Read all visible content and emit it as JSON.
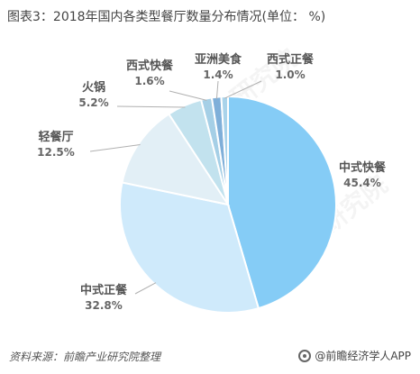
{
  "title": "图表3：2018年国内各类型餐厅数量分布情况(单位：  %)",
  "footer": {
    "source": "资料来源：前瞻产业研究院整理",
    "brand": "@前瞻经济学人APP"
  },
  "watermark_text": "前瞻产业研究院",
  "chart_data": {
    "type": "pie",
    "title": "图表3：2018年国内各类型餐厅数量分布情况(单位：  %)",
    "slices": [
      {
        "name": "中式快餐",
        "value": 45.4,
        "label": "45.4%",
        "color": "#85CCF6"
      },
      {
        "name": "中式正餐",
        "value": 32.8,
        "label": "32.8%",
        "color": "#CFEAFB"
      },
      {
        "name": "轻餐厅",
        "value": 12.5,
        "label": "12.5%",
        "color": "#E2EFF6"
      },
      {
        "name": "火锅",
        "value": 5.2,
        "label": "5.2%",
        "color": "#C2E2EE"
      },
      {
        "name": "西式快餐",
        "value": 1.6,
        "label": "1.6%",
        "color": "#A5CFE6"
      },
      {
        "name": "亚洲美食",
        "value": 1.4,
        "label": "1.4%",
        "color": "#7FAFD9"
      },
      {
        "name": "西式正餐",
        "value": 1.0,
        "label": "1.0%",
        "color": "#A9D3EA"
      }
    ],
    "start_angle_deg": 0,
    "direction": "clockwise",
    "legend": "none",
    "label_style": "outside labels with leader lines"
  }
}
